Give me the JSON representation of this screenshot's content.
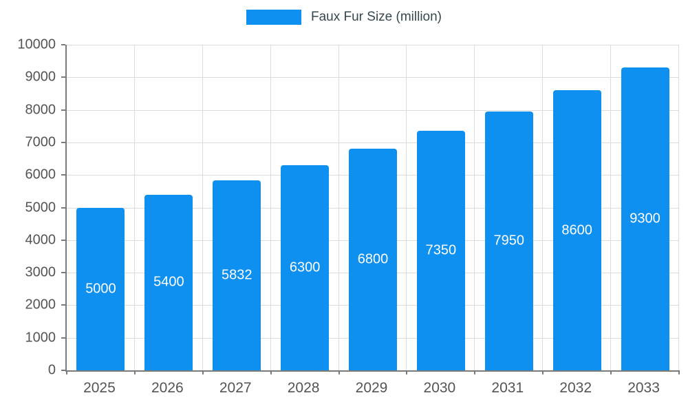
{
  "legend": {
    "label": "Faux Fur Size (million)"
  },
  "colors": {
    "bar": "#0e90f0",
    "grid": "#dcdcdc",
    "axis_line": "#7a7a7a",
    "axis_text": "#545454",
    "legend_text": "#37474f",
    "value_text": "#ffffff",
    "background": "#ffffff"
  },
  "chart_data": {
    "type": "bar",
    "title": "Faux Fur Size (million)",
    "categories": [
      "2025",
      "2026",
      "2027",
      "2028",
      "2029",
      "2030",
      "2031",
      "2032",
      "2033"
    ],
    "values": [
      5000,
      5400,
      5832,
      6300,
      6800,
      7350,
      7950,
      8600,
      9300
    ],
    "value_labels": [
      "5000",
      "5400",
      "5832",
      "6300",
      "6800",
      "7350",
      "7950",
      "8600",
      "9300"
    ],
    "xlabel": "",
    "ylabel": "",
    "ylim": [
      0,
      10000
    ],
    "ytick_step": 1000,
    "yticks": [
      0,
      1000,
      2000,
      3000,
      4000,
      5000,
      6000,
      7000,
      8000,
      9000,
      10000
    ],
    "grid": true,
    "legend_position": "top-center",
    "bar_label_position": "inside-middle"
  }
}
